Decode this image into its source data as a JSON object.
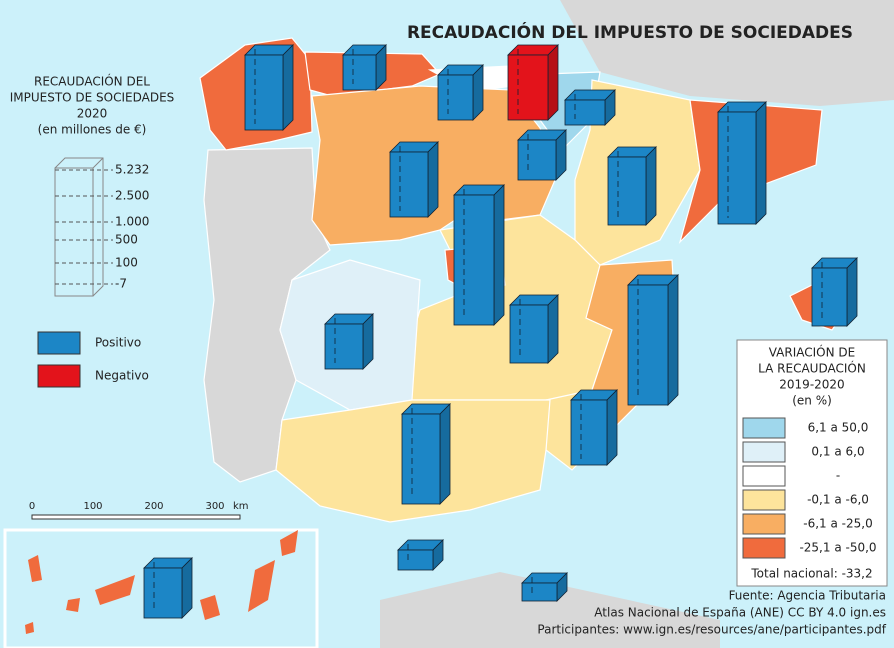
{
  "title": "RECAUDACIÓN DEL IMPUESTO DE SOCIEDADES",
  "size_legend": {
    "title": [
      "RECAUDACIÓN DEL",
      "IMPUESTO DE SOCIEDADES",
      "2020",
      "(en millones de €)"
    ],
    "levels": [
      "5.232",
      "2.500",
      "1.000",
      "500",
      "100",
      "-7"
    ]
  },
  "sign_legend": [
    {
      "label": "Positivo",
      "color": "#1c86c6"
    },
    {
      "label": "Negativo",
      "color": "#e3131b"
    }
  ],
  "scale_bar": {
    "ticks": [
      "0",
      "100",
      "200",
      "300"
    ],
    "unit": "km"
  },
  "color_legend": {
    "title": [
      "VARIACIÓN DE",
      "LA RECAUDACIÓN",
      "2019-2020",
      "(en %)"
    ],
    "classes": [
      {
        "label": "6,1 a 50,0",
        "color": "#9fd7ec"
      },
      {
        "label": "0,1 a 6,0",
        "color": "#dff0f8"
      },
      {
        "label": "-",
        "color": "#ffffff"
      },
      {
        "label": "-0,1 a -6,0",
        "color": "#fde49c"
      },
      {
        "label": "-6,1 a -25,0",
        "color": "#f8ae62"
      },
      {
        "label": "-25,1 a -50,0",
        "color": "#f06b3d"
      }
    ],
    "total": "Total nacional: -33,2"
  },
  "sources": [
    "Fuente: Agencia Tributaria",
    "Atlas Nacional de España (ANE) CC BY 4.0 ign.es",
    "Participantes: www.ign.es/resources/ane/participantes.pdf"
  ]
}
